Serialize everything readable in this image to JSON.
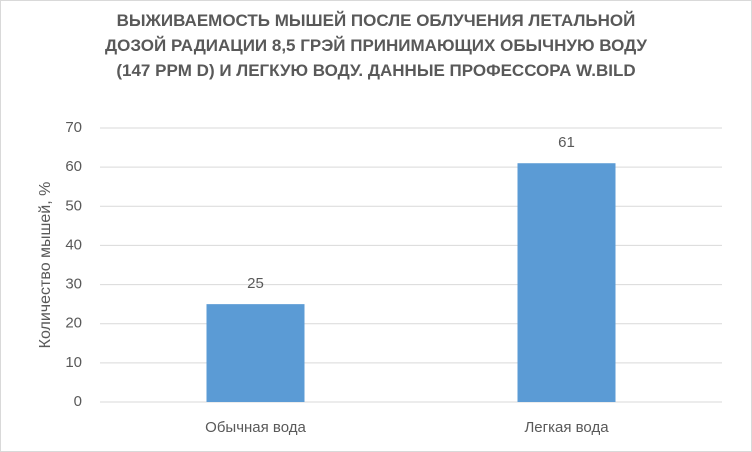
{
  "chart_data": {
    "type": "bar",
    "title": "ВЫЖИВАЕМОСТЬ МЫШЕЙ ПОСЛЕ ОБЛУЧЕНИЯ ЛЕТАЛЬНОЙ ДОЗОЙ РАДИАЦИИ 8,5 ГРЭЙ ПРИНИМАЮЩИХ ОБЫЧНУЮ ВОДУ (147 PPM D) И ЛЕГКУЮ ВОДУ. ДАННЫЕ ПРОФЕССОРА W.BILD",
    "y_label": "Количество мышей, %",
    "categories": [
      "Обычная вода",
      "Легкая вода"
    ],
    "values": [
      25,
      61
    ],
    "color": "#5b9bd5",
    "ylim": [
      0,
      70
    ],
    "yticks": [
      0,
      10,
      20,
      30,
      40,
      50,
      60,
      70
    ],
    "grid": true
  }
}
